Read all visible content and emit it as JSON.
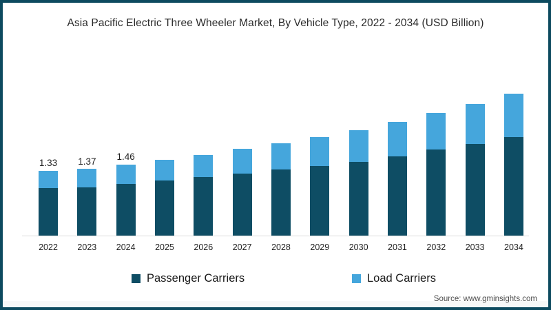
{
  "title": "Asia Pacific Electric Three Wheeler Market, By Vehicle Type, 2022 - 2034 (USD Billion)",
  "source": "Source: www.gminsights.com",
  "colors": {
    "passenger": "#0e4d64",
    "load": "#45a6dc",
    "frame_border": "#0d4a5f",
    "axis_line": "#dcdcdc",
    "title_text": "#2a2a2a",
    "axis_text": "#1f1f1f",
    "source_text": "#4d4d4d"
  },
  "chart_data": {
    "type": "bar",
    "stacked": true,
    "title": "Asia Pacific Electric Three Wheeler Market, By Vehicle Type, 2022 - 2034 (USD Billion)",
    "xlabel": "",
    "ylabel": "USD Billion",
    "ylim": [
      0,
      3
    ],
    "grid": false,
    "legend_position": "bottom",
    "categories": [
      "2022",
      "2023",
      "2024",
      "2025",
      "2026",
      "2027",
      "2028",
      "2029",
      "2030",
      "2031",
      "2032",
      "2033",
      "2034"
    ],
    "series": [
      {
        "name": "Passenger Carriers",
        "color": "#0e4d64",
        "values": [
          0.97,
          0.99,
          1.06,
          1.13,
          1.2,
          1.27,
          1.36,
          1.43,
          1.52,
          1.63,
          1.77,
          1.88,
          2.02
        ]
      },
      {
        "name": "Load Carriers",
        "color": "#45a6dc",
        "values": [
          0.36,
          0.38,
          0.4,
          0.43,
          0.46,
          0.51,
          0.54,
          0.59,
          0.64,
          0.7,
          0.75,
          0.82,
          0.89
        ]
      }
    ],
    "totals": [
      1.33,
      1.37,
      1.46,
      1.56,
      1.66,
      1.78,
      1.9,
      2.02,
      2.16,
      2.33,
      2.52,
      2.7,
      2.91
    ],
    "total_labels": [
      "1.33",
      "1.37",
      "1.46",
      "",
      "",
      "",
      "",
      "",
      "",
      "",
      "",
      "",
      ""
    ]
  }
}
